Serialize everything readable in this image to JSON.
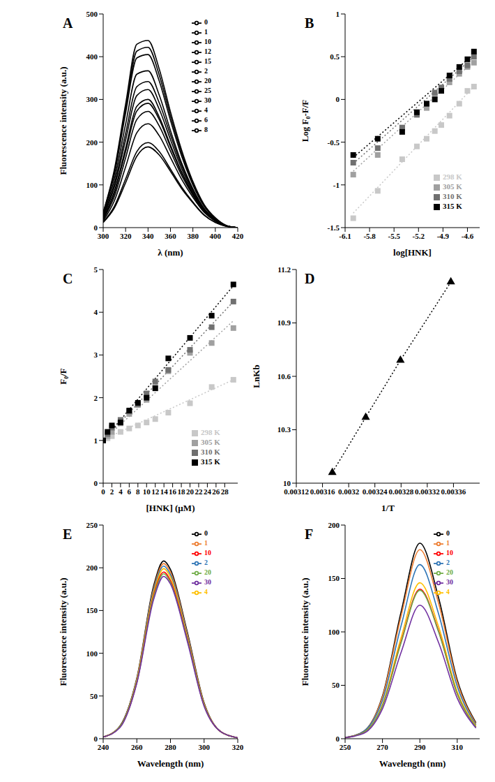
{
  "chart_data": [
    {
      "type": "line",
      "title": "A",
      "x_label": "λ (nm)",
      "y_label": "Fluorescence intensity (a.u.)",
      "grid": false,
      "legend": "upper right",
      "xlim": [
        300,
        420
      ],
      "xticks": [
        300,
        320,
        340,
        360,
        380,
        400,
        420
      ],
      "ylim": [
        0,
        500
      ],
      "yticks": [
        0,
        100,
        200,
        300,
        400,
        500
      ],
      "x": [
        300,
        310,
        320,
        330,
        340,
        350,
        360,
        370,
        380,
        390,
        400,
        410,
        420
      ],
      "series": [
        {
          "name": "0",
          "color": "#000000",
          "line_style": "solid",
          "values": [
            36,
            136,
            289,
            429,
            438,
            371,
            271,
            181,
            108,
            54,
            23,
            5,
            0
          ]
        },
        {
          "name": "1",
          "color": "#000000",
          "line_style": "solid",
          "values": [
            35,
            131,
            278,
            413,
            422,
            357,
            261,
            174,
            104,
            52,
            22,
            4,
            0
          ]
        },
        {
          "name": "2",
          "color": "#000000",
          "line_style": "solid",
          "values": [
            33,
            125,
            268,
            397,
            405,
            343,
            251,
            167,
            100,
            50,
            21,
            4,
            0
          ]
        },
        {
          "name": "4",
          "color": "#000000",
          "line_style": "solid",
          "values": [
            30,
            113,
            242,
            359,
            367,
            310,
            227,
            151,
            91,
            45,
            19,
            4,
            0
          ]
        },
        {
          "name": "6",
          "color": "#000000",
          "line_style": "solid",
          "values": [
            27,
            102,
            220,
            330,
            342,
            292,
            217,
            145,
            88,
            44,
            18,
            4,
            0
          ]
        },
        {
          "name": "8",
          "color": "#000000",
          "line_style": "solid",
          "values": [
            25,
            95,
            205,
            309,
            323,
            277,
            206,
            138,
            84,
            42,
            17,
            4,
            0
          ]
        },
        {
          "name": "10",
          "color": "#000000",
          "line_style": "solid",
          "values": [
            22,
            85,
            186,
            284,
            300,
            259,
            193,
            130,
            80,
            40,
            16,
            4,
            0
          ]
        },
        {
          "name": "12",
          "color": "#000000",
          "line_style": "solid",
          "values": [
            21,
            81,
            178,
            273,
            291,
            253,
            189,
            128,
            79,
            39,
            16,
            4,
            0
          ]
        },
        {
          "name": "15",
          "color": "#000000",
          "line_style": "solid",
          "values": [
            19,
            73,
            163,
            253,
            272,
            238,
            179,
            122,
            76,
            38,
            16,
            4,
            0
          ]
        },
        {
          "name": "20",
          "color": "#000000",
          "line_style": "solid",
          "values": [
            16,
            63,
            142,
            222,
            243,
            215,
            164,
            113,
            71,
            36,
            15,
            4,
            0
          ]
        },
        {
          "name": "25",
          "color": "#000000",
          "line_style": "solid",
          "values": [
            13,
            50,
            114,
            178,
            199,
            178,
            137,
            95,
            60,
            30,
            12,
            3,
            0
          ]
        },
        {
          "name": "30",
          "color": "#000000",
          "line_style": "solid",
          "values": [
            12,
            46,
            105,
            167,
            189,
            170,
            132,
            91,
            58,
            29,
            12,
            3,
            0
          ]
        }
      ]
    },
    {
      "type": "scatter",
      "title": "B",
      "x_label": "log[HNK]",
      "y_label": "Log F₀-F/F",
      "grid": false,
      "legend": "lower right",
      "xlim": [
        -6.1,
        -4.45
      ],
      "xticks": [
        -6.1,
        -5.8,
        -5.5,
        -5.2,
        -4.9,
        -4.6
      ],
      "ylim": [
        -1.5,
        1
      ],
      "yticks": [
        -1.5,
        -1,
        -0.5,
        0,
        0.5,
        1
      ],
      "x": [
        -6.0,
        -5.7,
        -5.4,
        -5.22,
        -5.1,
        -5.0,
        -4.92,
        -4.82,
        -4.7,
        -4.6,
        -4.52
      ],
      "series": [
        {
          "name": "298 K",
          "color": "#c8c8c8",
          "marker": "square",
          "line_style": "dotted",
          "values": [
            -1.39,
            -1.07,
            -0.7,
            -0.55,
            -0.46,
            -0.37,
            -0.3,
            -0.19,
            -0.05,
            0.1,
            0.15
          ],
          "fit_x": [
            -6.0,
            -4.52
          ],
          "fit_y": [
            -1.33,
            0.15
          ]
        },
        {
          "name": "305 K",
          "color": "#a0a0a0",
          "marker": "square",
          "line_style": "dotted",
          "values": [
            -0.88,
            -0.65,
            -0.33,
            -0.15,
            -0.1,
            0.05,
            0.12,
            0.2,
            0.3,
            0.38,
            0.43
          ],
          "fit_x": [
            -6.0,
            -4.52
          ],
          "fit_y": [
            -0.84,
            0.45
          ]
        },
        {
          "name": "310 K",
          "color": "#707070",
          "marker": "square",
          "line_style": "dotted",
          "values": [
            -0.74,
            -0.57,
            -0.33,
            -0.18,
            -0.05,
            0.08,
            0.14,
            0.24,
            0.33,
            0.4,
            0.5
          ],
          "fit_x": [
            -6.0,
            -4.52
          ],
          "fit_y": [
            -0.75,
            0.5
          ]
        },
        {
          "name": "315 K",
          "color": "#000000",
          "marker": "square",
          "line_style": "dotted",
          "values": [
            -0.65,
            -0.46,
            -0.38,
            -0.15,
            -0.05,
            0.0,
            0.1,
            0.28,
            0.38,
            0.47,
            0.56
          ],
          "fit_x": [
            -6.0,
            -4.52
          ],
          "fit_y": [
            -0.68,
            0.53
          ]
        }
      ]
    },
    {
      "type": "scatter",
      "title": "C",
      "x_label": "[HNK] (µM)",
      "y_label": "F₀/F",
      "grid": false,
      "legend": "lower right",
      "xlim": [
        0,
        31
      ],
      "xticks": [
        0,
        2,
        4,
        6,
        8,
        10,
        12,
        14,
        16,
        18,
        20,
        22,
        24,
        26,
        28
      ],
      "ylim": [
        0,
        5
      ],
      "yticks": [
        0,
        1,
        2,
        3,
        4,
        5
      ],
      "x": [
        0,
        1,
        2,
        4,
        6,
        8,
        10,
        12,
        15,
        20,
        25,
        30
      ],
      "series": [
        {
          "name": "298 K",
          "color": "#c8c8c8",
          "marker": "square",
          "line_style": "dotted",
          "values": [
            1,
            1.05,
            1.1,
            1.2,
            1.28,
            1.35,
            1.42,
            1.5,
            1.65,
            1.87,
            2.25,
            2.42
          ],
          "fit_x": [
            0,
            30
          ],
          "fit_y": [
            1.02,
            2.42
          ]
        },
        {
          "name": "305 K",
          "color": "#a0a0a0",
          "marker": "square",
          "line_style": "dotted",
          "values": [
            1,
            1.1,
            1.2,
            1.4,
            1.62,
            1.83,
            1.95,
            2.25,
            2.62,
            3.05,
            3.28,
            3.63
          ],
          "fit_x": [
            0,
            30
          ],
          "fit_y": [
            1.0,
            3.8
          ]
        },
        {
          "name": "310 K",
          "color": "#707070",
          "marker": "square",
          "line_style": "dotted",
          "values": [
            1,
            1.15,
            1.3,
            1.48,
            1.68,
            1.85,
            2.1,
            2.38,
            2.65,
            3.12,
            3.65,
            4.25
          ],
          "fit_x": [
            0,
            30
          ],
          "fit_y": [
            1.0,
            4.25
          ]
        },
        {
          "name": "315 K",
          "color": "#000000",
          "marker": "square",
          "line_style": "dotted",
          "values": [
            1,
            1.2,
            1.35,
            1.42,
            1.7,
            1.88,
            2.0,
            2.22,
            2.92,
            3.4,
            3.92,
            4.65
          ],
          "fit_x": [
            0,
            30
          ],
          "fit_y": [
            1.0,
            4.62
          ]
        }
      ]
    },
    {
      "type": "scatter",
      "title": "D",
      "x_label": "1/T",
      "y_label": "LnKb",
      "grid": false,
      "xlim": [
        0.00312,
        0.0034
      ],
      "xticks": [
        0.00312,
        0.00316,
        0.0032,
        0.00324,
        0.00328,
        0.00332,
        0.00336
      ],
      "ylim": [
        10,
        11.2
      ],
      "yticks": [
        10,
        10.3,
        10.6,
        10.9,
        11.2
      ],
      "x": [
        0.003175,
        0.003226,
        0.003279,
        0.003356
      ],
      "series": [
        {
          "name": "LnKb",
          "color": "#000000",
          "marker": "triangle",
          "line_style": "dotted",
          "values": [
            10.06,
            10.37,
            10.69,
            11.13
          ]
        }
      ]
    },
    {
      "type": "line",
      "title": "E",
      "x_label": "Wavelength (nm)",
      "y_label": "Fluorescence intensity (a.u.)",
      "grid": false,
      "legend": "upper right",
      "xlim": [
        240,
        320
      ],
      "xticks": [
        240,
        260,
        280,
        300,
        320
      ],
      "ylim": [
        0,
        250
      ],
      "yticks": [
        0,
        50,
        100,
        150,
        200,
        250
      ],
      "x": [
        240,
        250,
        260,
        270,
        276,
        280,
        290,
        300,
        310,
        320
      ],
      "series": [
        {
          "name": "0",
          "color": "#000000",
          "line_style": "solid",
          "values": [
            2,
            15,
            71,
            179,
            208,
            198,
            125,
            42,
            8,
            1
          ]
        },
        {
          "name": "1",
          "color": "#ed7d31",
          "line_style": "solid",
          "values": [
            2,
            14,
            70,
            176,
            205,
            195,
            123,
            41,
            8,
            1
          ]
        },
        {
          "name": "2",
          "color": "#2e75b6",
          "line_style": "solid",
          "values": [
            2,
            14,
            69,
            174,
            202,
            192,
            121,
            40,
            8,
            1
          ]
        },
        {
          "name": "4",
          "color": "#ffc000",
          "line_style": "solid",
          "values": [
            2,
            14,
            68,
            171,
            199,
            189,
            119,
            40,
            8,
            1
          ]
        },
        {
          "name": "10",
          "color": "#ff0000",
          "line_style": "solid",
          "values": [
            2,
            14,
            66,
            168,
            195,
            185,
            117,
            39,
            8,
            1
          ]
        },
        {
          "name": "20",
          "color": "#70ad47",
          "line_style": "solid",
          "values": [
            2,
            14,
            66,
            166,
            193,
            183,
            116,
            39,
            8,
            1
          ]
        },
        {
          "name": "30",
          "color": "#7030a0",
          "line_style": "solid",
          "values": [
            2,
            13,
            65,
            163,
            190,
            181,
            114,
            38,
            8,
            1
          ]
        }
      ]
    },
    {
      "type": "line",
      "title": "F",
      "x_label": "Wavelength (nm)",
      "y_label": "Fluorescence intensity (a.u.)",
      "grid": false,
      "legend": "upper right",
      "xlim": [
        250,
        322
      ],
      "xticks": [
        250,
        270,
        290,
        310
      ],
      "ylim": [
        0,
        200
      ],
      "yticks": [
        0,
        50,
        100,
        150,
        200
      ],
      "x": [
        250,
        260,
        270,
        280,
        290,
        300,
        310,
        320
      ],
      "series": [
        {
          "name": "0",
          "color": "#000000",
          "line_style": "solid",
          "values": [
            1,
            7,
            40,
            119,
            183,
            132,
            55,
            15
          ]
        },
        {
          "name": "1",
          "color": "#ed7d31",
          "line_style": "solid",
          "values": [
            1,
            7,
            39,
            115,
            177,
            127,
            53,
            14
          ]
        },
        {
          "name": "2",
          "color": "#2e75b6",
          "line_style": "solid",
          "values": [
            1,
            7,
            36,
            106,
            163,
            117,
            49,
            13
          ]
        },
        {
          "name": "4",
          "color": "#ffc000",
          "line_style": "solid",
          "values": [
            1,
            6,
            32,
            95,
            146,
            105,
            44,
            12
          ]
        },
        {
          "name": "10",
          "color": "#ff0000",
          "line_style": "solid",
          "values": [
            1,
            6,
            31,
            91,
            140,
            101,
            42,
            11
          ]
        },
        {
          "name": "20",
          "color": "#70ad47",
          "line_style": "solid",
          "values": [
            1,
            6,
            31,
            90,
            139,
            100,
            42,
            11
          ]
        },
        {
          "name": "30",
          "color": "#7030a0",
          "line_style": "solid",
          "values": [
            1,
            5,
            28,
            81,
            125,
            90,
            38,
            10
          ]
        }
      ]
    }
  ]
}
